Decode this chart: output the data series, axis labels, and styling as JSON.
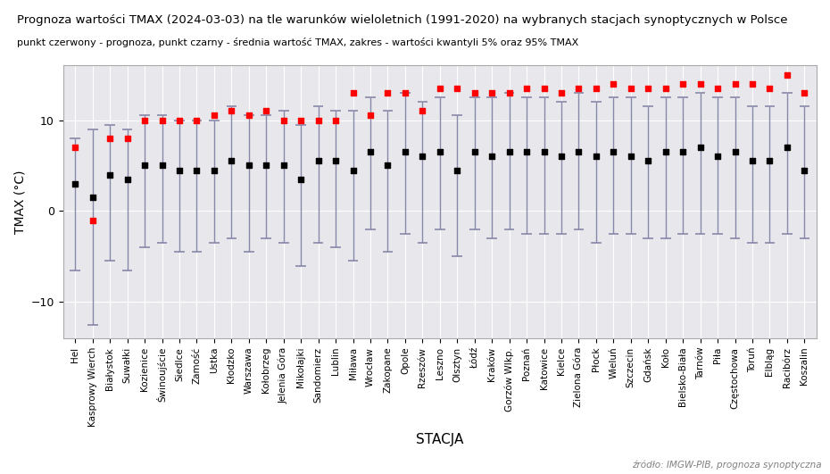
{
  "title": "Prognoza wartości TMAX (2024-03-03) na tle warunków wieloletnich (1991-2020) na wybranych stacjach synoptycznych w Polsce",
  "subtitle": "punkt czerwony - prognoza, punkt czarny - średnia wartość TMAX, zakres - wartości kwantyli 5% oraz 95% TMAX",
  "xlabel": "STACJA",
  "ylabel": "TMAX (°C)",
  "source": "źródło: IMGW-PIB, prognoza synoptyczna",
  "background_color": "#ffffff",
  "plot_bg_color": "#e8e8ec",
  "grid_color": "#ffffff",
  "line_color": "#8888aa",
  "stations": [
    "Hel",
    "Kasprowy Wierch",
    "Białystok",
    "Suwałki",
    "Kozienice",
    "Świnoujście",
    "Siedlce",
    "Zamość",
    "Ustka",
    "Kłodzko",
    "Warszawa",
    "Kołobrzeg",
    "Jelenia Góra",
    "Mikołajki",
    "Sandomierz",
    "Lublin",
    "Miława",
    "Wrocław",
    "Zakopane",
    "Opole",
    "Rzeszów",
    "Leszno",
    "Olsztyn",
    "Łódź",
    "Kraków",
    "Gorzów Wlkp.",
    "Poznań",
    "Katowice",
    "Kielce",
    "Zielona Góra",
    "Płock",
    "Wieluń",
    "Szczecin",
    "Gdańsk",
    "Koło",
    "Bielsko-Biała",
    "Tarnów",
    "Piła",
    "Częstochowa",
    "Toruń",
    "Elbląg",
    "Racibórz",
    "Koszalin"
  ],
  "forecast": [
    7.0,
    -1.0,
    8.0,
    8.0,
    10.0,
    10.0,
    10.0,
    10.0,
    10.5,
    11.0,
    10.5,
    11.0,
    10.0,
    10.0,
    10.0,
    10.0,
    13.0,
    10.5,
    13.0,
    13.0,
    11.0,
    13.5,
    13.5,
    13.0,
    13.0,
    13.0,
    13.5,
    13.5,
    13.0,
    13.5,
    13.5,
    14.0,
    13.5,
    13.5,
    13.5,
    14.0,
    14.0,
    13.5,
    14.0,
    14.0,
    13.5,
    15.0,
    13.0
  ],
  "mean": [
    3.0,
    1.5,
    4.0,
    3.5,
    5.0,
    5.0,
    4.5,
    4.5,
    4.5,
    5.5,
    5.0,
    5.0,
    5.0,
    3.5,
    5.5,
    5.5,
    4.5,
    6.5,
    5.0,
    6.5,
    6.0,
    6.5,
    4.5,
    6.5,
    6.0,
    6.5,
    6.5,
    6.5,
    6.0,
    6.5,
    6.0,
    6.5,
    6.0,
    5.5,
    6.5,
    6.5,
    7.0,
    6.0,
    6.5,
    5.5,
    5.5,
    7.0,
    4.5
  ],
  "q05": [
    -6.5,
    -12.5,
    -5.5,
    -6.5,
    -4.0,
    -3.5,
    -4.5,
    -4.5,
    -3.5,
    -3.0,
    -4.5,
    -3.0,
    -3.5,
    -6.0,
    -3.5,
    -4.0,
    -5.5,
    -2.0,
    -4.5,
    -2.5,
    -3.5,
    -2.0,
    -5.0,
    -2.0,
    -3.0,
    -2.0,
    -2.5,
    -2.5,
    -2.5,
    -2.0,
    -3.5,
    -2.5,
    -2.5,
    -3.0,
    -3.0,
    -2.5,
    -2.5,
    -2.5,
    -3.0,
    -3.5,
    -3.5,
    -2.5,
    -3.0
  ],
  "q95": [
    8.0,
    9.0,
    9.5,
    9.0,
    10.5,
    10.5,
    10.0,
    10.0,
    10.0,
    11.5,
    10.5,
    10.5,
    11.0,
    9.5,
    11.5,
    11.0,
    11.0,
    12.5,
    11.0,
    13.0,
    12.0,
    12.5,
    10.5,
    12.5,
    12.5,
    13.0,
    12.5,
    12.5,
    12.0,
    13.0,
    12.0,
    12.5,
    12.5,
    11.5,
    12.5,
    12.5,
    13.0,
    12.5,
    12.5,
    11.5,
    11.5,
    13.0,
    11.5
  ],
  "ylim": [
    -14,
    16
  ],
  "yticks": [
    -10,
    0,
    10
  ]
}
